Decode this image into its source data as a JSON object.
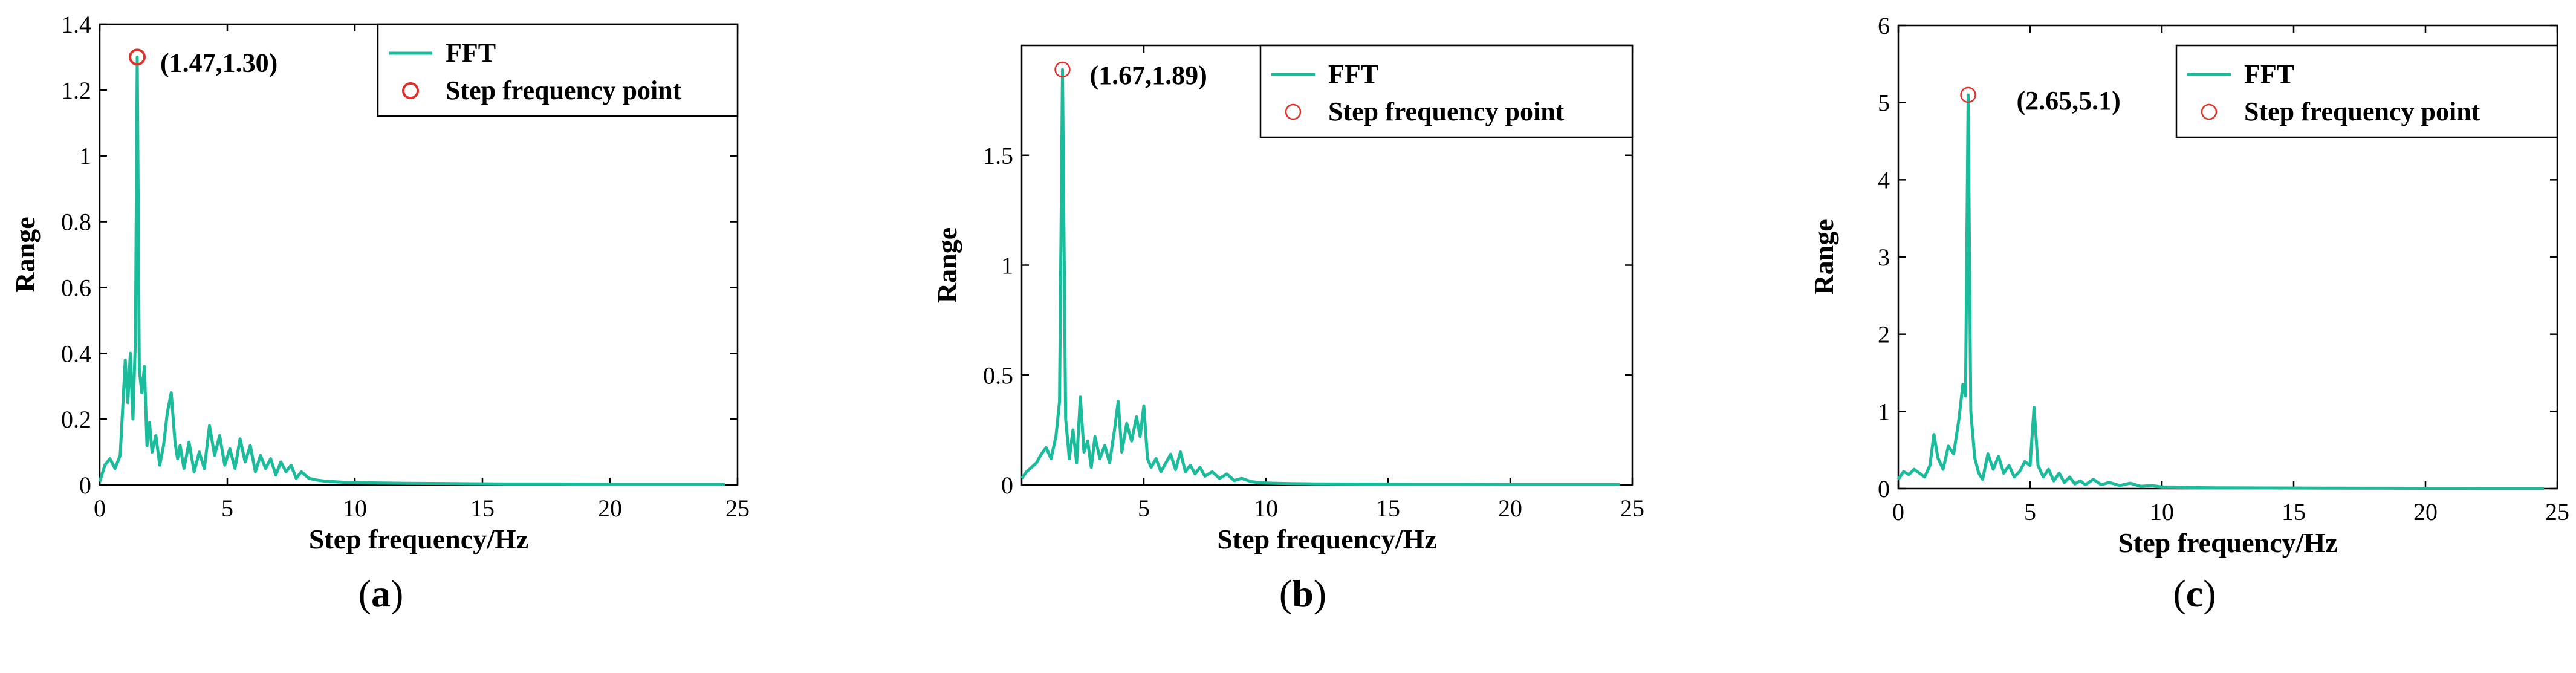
{
  "colors": {
    "line": "#1abc9c",
    "marker": "#e0302a",
    "axis": "#000000",
    "background": "#ffffff"
  },
  "legend": {
    "fft": "FFT",
    "step_point": "Step frequency point"
  },
  "chart_data": [
    {
      "id": "a",
      "type": "line",
      "caption_open": "(",
      "caption_letter": "a",
      "caption_close": ")",
      "xlabel": "Step frequency/Hz",
      "ylabel": "Range",
      "xlim": [
        0,
        25
      ],
      "ylim": [
        0,
        1.4
      ],
      "xticks": [
        0,
        5,
        10,
        15,
        20,
        25
      ],
      "yticks": [
        0,
        0.2,
        0.4,
        0.6,
        0.8,
        1,
        1.2,
        1.4
      ],
      "ytick_labels": [
        "0",
        "0.2",
        "0.4",
        "0.6",
        "0.8",
        "1",
        "1.2",
        "1.4"
      ],
      "peak": {
        "x": 1.47,
        "y": 1.3,
        "label": "(1.47,1.30)"
      },
      "series": [
        {
          "name": "FFT",
          "x": [
            0,
            0.2,
            0.4,
            0.6,
            0.8,
            1.0,
            1.1,
            1.2,
            1.3,
            1.4,
            1.47,
            1.55,
            1.65,
            1.75,
            1.85,
            1.95,
            2.05,
            2.2,
            2.35,
            2.5,
            2.65,
            2.8,
            2.95,
            3.05,
            3.15,
            3.3,
            3.5,
            3.7,
            3.9,
            4.1,
            4.3,
            4.5,
            4.7,
            4.9,
            5.1,
            5.3,
            5.5,
            5.7,
            5.9,
            6.1,
            6.3,
            6.5,
            6.7,
            6.9,
            7.1,
            7.3,
            7.5,
            7.7,
            7.9,
            8.2,
            8.5,
            8.8,
            9.2,
            9.6,
            10,
            11,
            12,
            14,
            16,
            18,
            20,
            22,
            24.5
          ],
          "y": [
            0.01,
            0.06,
            0.08,
            0.05,
            0.09,
            0.38,
            0.25,
            0.4,
            0.2,
            0.45,
            1.3,
            0.35,
            0.28,
            0.36,
            0.12,
            0.19,
            0.1,
            0.15,
            0.06,
            0.12,
            0.22,
            0.28,
            0.13,
            0.08,
            0.12,
            0.05,
            0.13,
            0.04,
            0.1,
            0.05,
            0.18,
            0.09,
            0.15,
            0.06,
            0.11,
            0.05,
            0.14,
            0.07,
            0.12,
            0.04,
            0.09,
            0.05,
            0.08,
            0.03,
            0.07,
            0.04,
            0.06,
            0.02,
            0.04,
            0.02,
            0.015,
            0.012,
            0.01,
            0.008,
            0.008,
            0.006,
            0.005,
            0.004,
            0.003,
            0.003,
            0.002,
            0.002,
            0.002
          ]
        }
      ]
    },
    {
      "id": "b",
      "type": "line",
      "caption_open": "(",
      "caption_letter": "b",
      "caption_close": ")",
      "xlabel": "Step frequency/Hz",
      "ylabel": "Range",
      "xlim": [
        0,
        25
      ],
      "ylim": [
        0,
        2.0
      ],
      "xticks": [
        5,
        10,
        15,
        20,
        25
      ],
      "yticks": [
        0,
        0.5,
        1,
        1.5
      ],
      "ytick_labels": [
        "0",
        "0.5",
        "1",
        "1.5"
      ],
      "peak": {
        "x": 1.67,
        "y": 1.89,
        "label": "(1.67,1.89)"
      },
      "series": [
        {
          "name": "FFT",
          "x": [
            0,
            0.2,
            0.4,
            0.6,
            0.8,
            1.0,
            1.2,
            1.4,
            1.55,
            1.67,
            1.8,
            1.95,
            2.1,
            2.25,
            2.4,
            2.55,
            2.7,
            2.85,
            3.0,
            3.2,
            3.4,
            3.6,
            3.8,
            3.95,
            4.1,
            4.3,
            4.5,
            4.7,
            4.85,
            5.0,
            5.15,
            5.3,
            5.5,
            5.7,
            5.9,
            6.1,
            6.3,
            6.5,
            6.7,
            6.9,
            7.1,
            7.3,
            7.5,
            7.8,
            8.1,
            8.4,
            8.7,
            9.0,
            9.4,
            9.8,
            10.3,
            11,
            12,
            14,
            16,
            18,
            20,
            22,
            24.5
          ],
          "y": [
            0.03,
            0.06,
            0.08,
            0.1,
            0.14,
            0.17,
            0.12,
            0.22,
            0.38,
            1.89,
            0.3,
            0.12,
            0.25,
            0.1,
            0.4,
            0.15,
            0.2,
            0.08,
            0.22,
            0.12,
            0.18,
            0.1,
            0.25,
            0.38,
            0.15,
            0.28,
            0.2,
            0.31,
            0.22,
            0.36,
            0.12,
            0.08,
            0.12,
            0.06,
            0.1,
            0.14,
            0.07,
            0.15,
            0.06,
            0.09,
            0.05,
            0.08,
            0.04,
            0.06,
            0.03,
            0.05,
            0.02,
            0.03,
            0.015,
            0.01,
            0.008,
            0.006,
            0.005,
            0.004,
            0.003,
            0.003,
            0.002,
            0.002,
            0.002
          ]
        }
      ]
    },
    {
      "id": "c",
      "type": "line",
      "caption_open": "(",
      "caption_letter": "c",
      "caption_close": ")",
      "xlabel": "Step frequency/Hz",
      "ylabel": "Range",
      "xlim": [
        0,
        25
      ],
      "ylim": [
        0,
        6
      ],
      "xticks": [
        0,
        5,
        10,
        15,
        20,
        25
      ],
      "yticks": [
        0,
        1,
        2,
        3,
        4,
        5,
        6
      ],
      "ytick_labels": [
        "0",
        "1",
        "2",
        "3",
        "4",
        "5",
        "6"
      ],
      "peak": {
        "x": 2.65,
        "y": 5.1,
        "label": "(2.65,5.1)"
      },
      "series": [
        {
          "name": "FFT",
          "x": [
            0,
            0.2,
            0.4,
            0.6,
            0.8,
            1.0,
            1.2,
            1.35,
            1.5,
            1.7,
            1.9,
            2.1,
            2.3,
            2.45,
            2.55,
            2.65,
            2.75,
            2.9,
            3.05,
            3.2,
            3.4,
            3.6,
            3.8,
            4.0,
            4.2,
            4.4,
            4.6,
            4.8,
            5.0,
            5.15,
            5.3,
            5.5,
            5.7,
            5.9,
            6.1,
            6.3,
            6.5,
            6.7,
            6.9,
            7.1,
            7.4,
            7.7,
            8.0,
            8.4,
            8.8,
            9.2,
            9.6,
            10.0,
            10.5,
            11,
            12,
            14,
            16,
            18,
            20,
            22,
            24.5
          ],
          "y": [
            0.12,
            0.22,
            0.18,
            0.25,
            0.2,
            0.15,
            0.3,
            0.7,
            0.4,
            0.25,
            0.55,
            0.45,
            0.9,
            1.35,
            1.2,
            5.1,
            1.0,
            0.4,
            0.2,
            0.12,
            0.45,
            0.25,
            0.42,
            0.2,
            0.3,
            0.15,
            0.22,
            0.35,
            0.3,
            1.05,
            0.3,
            0.15,
            0.25,
            0.1,
            0.2,
            0.08,
            0.15,
            0.06,
            0.1,
            0.05,
            0.12,
            0.05,
            0.08,
            0.04,
            0.07,
            0.03,
            0.04,
            0.02,
            0.02,
            0.015,
            0.01,
            0.008,
            0.006,
            0.005,
            0.004,
            0.003,
            0.003
          ]
        }
      ]
    }
  ]
}
